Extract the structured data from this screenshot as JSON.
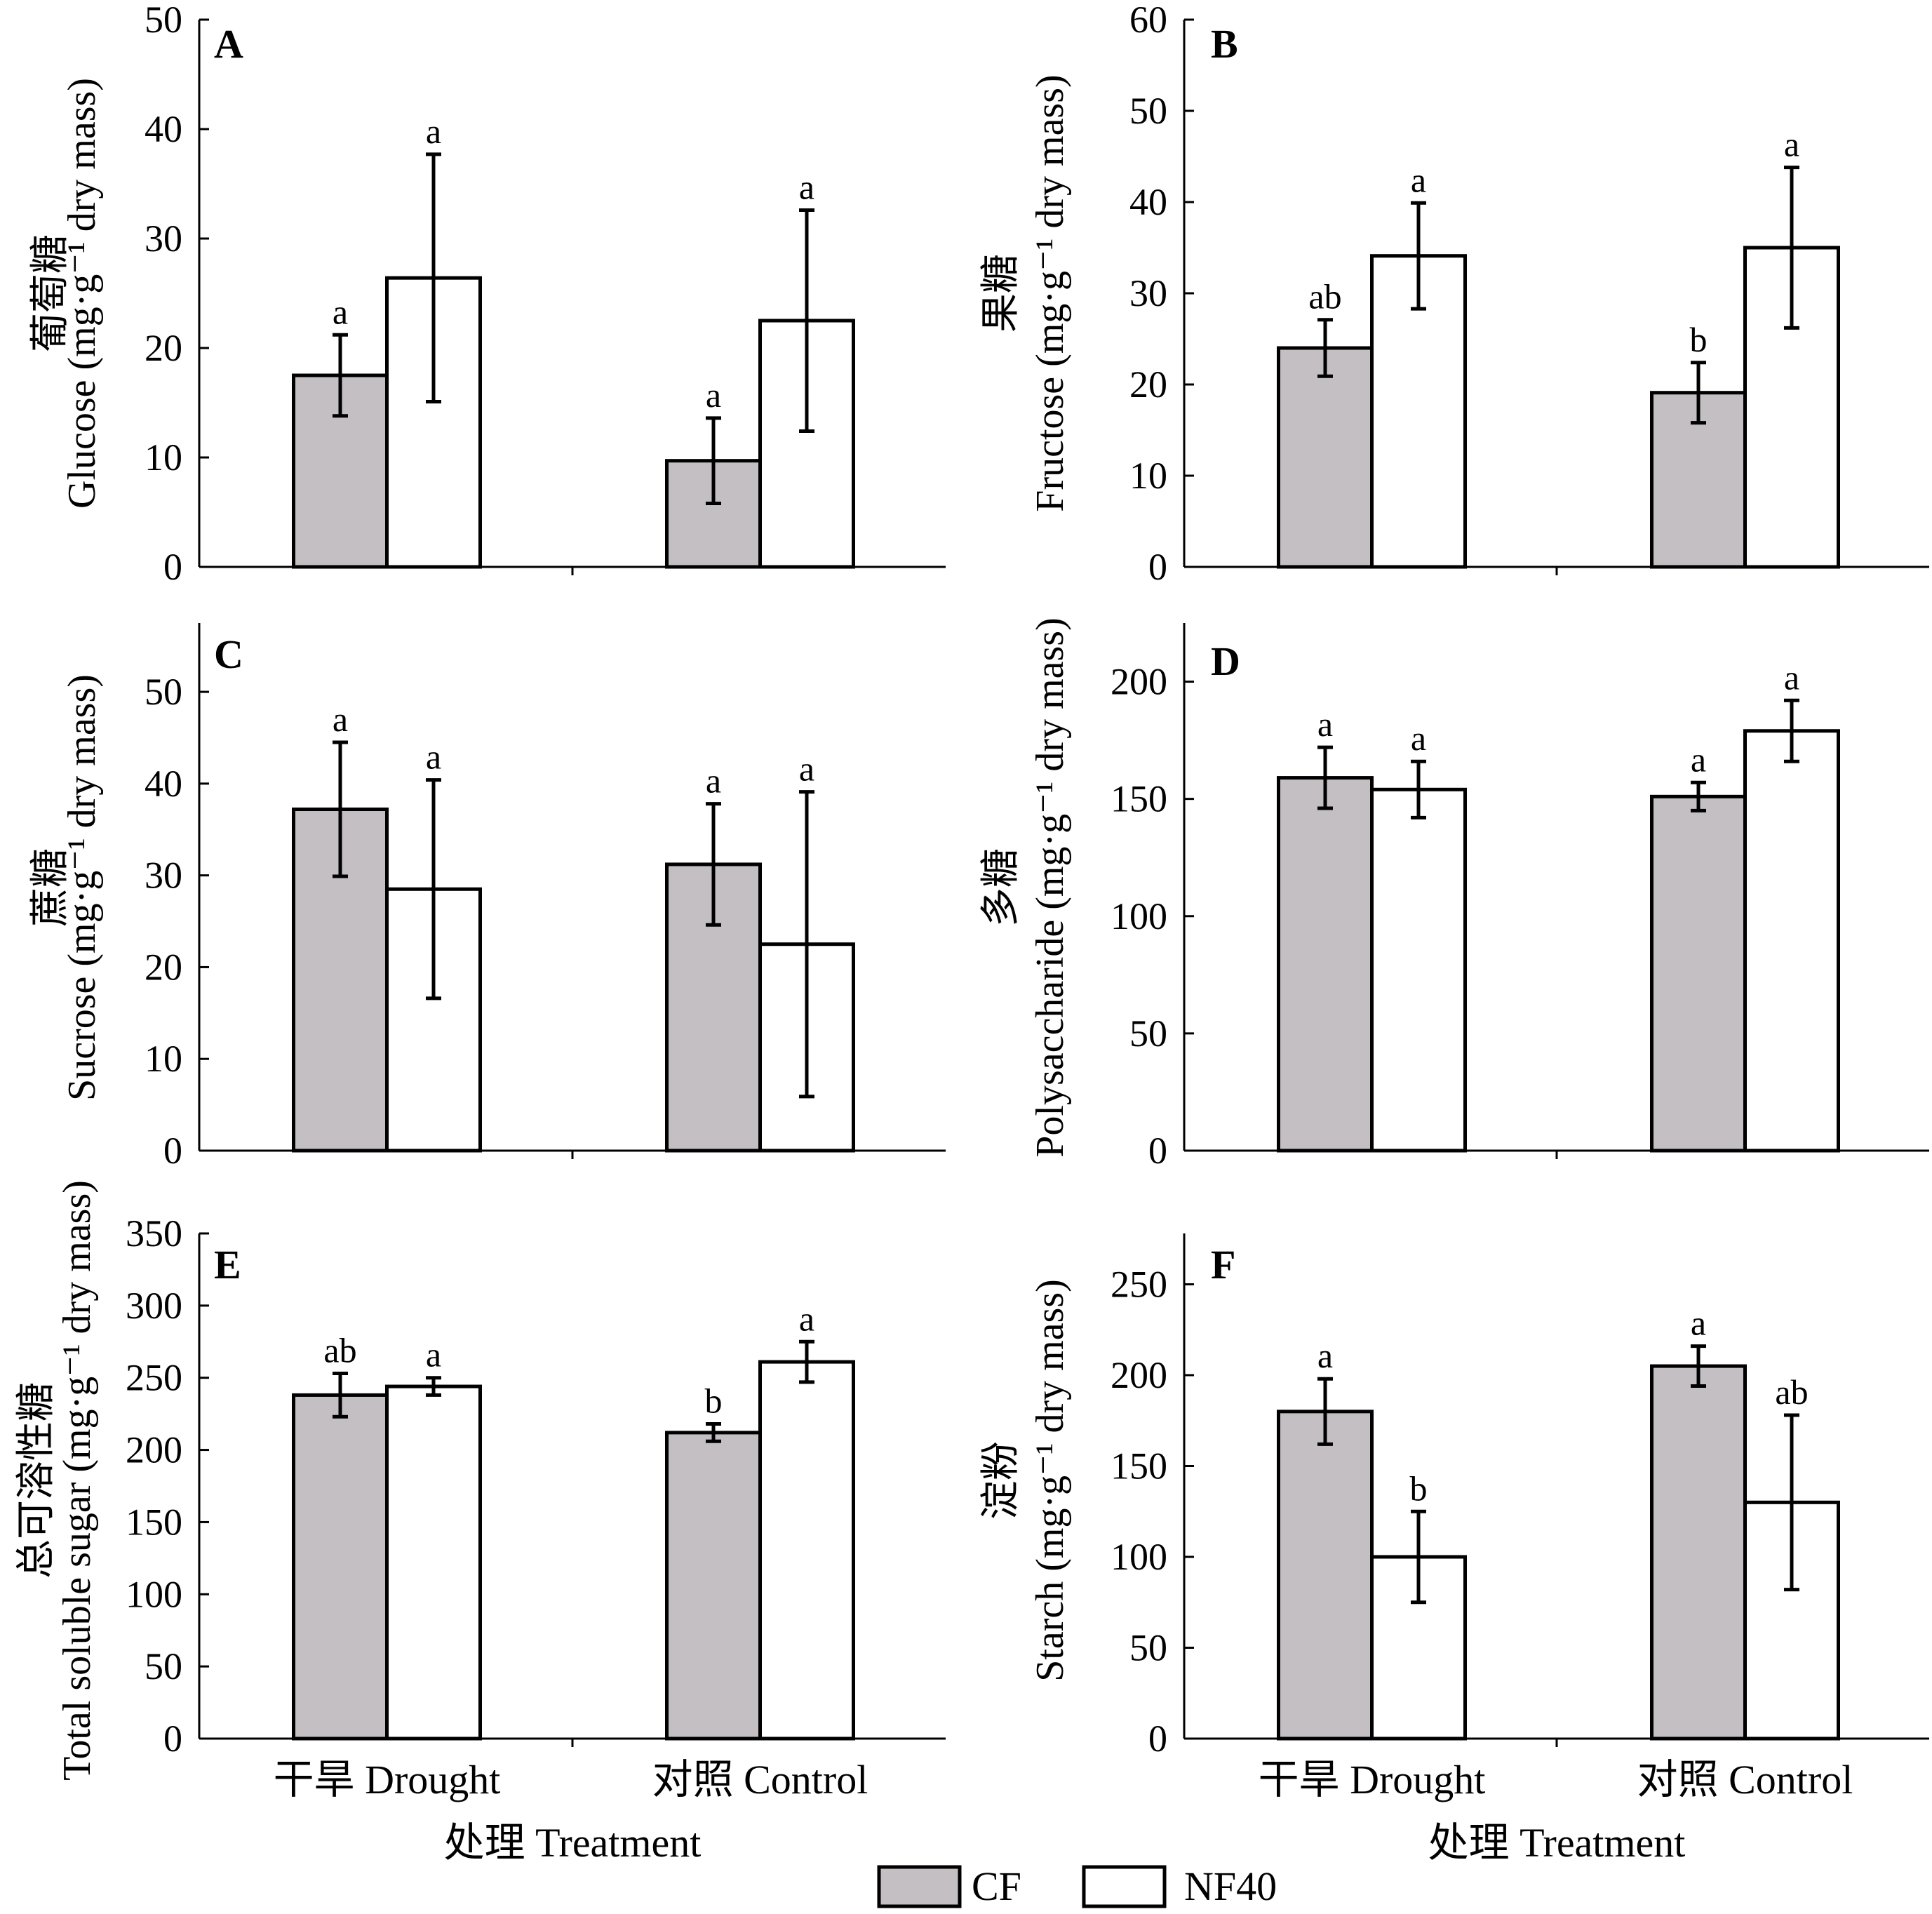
{
  "colors": {
    "CF": "#c4bfc3",
    "NF40": "#ffffff",
    "stroke": "#000000"
  },
  "legend": [
    {
      "name": "CF",
      "color": "#c4bfc3"
    },
    {
      "name": "NF40",
      "color": "#ffffff"
    }
  ],
  "chart_data": [
    {
      "type": "bar",
      "panel": "A",
      "ylabel_cn": "葡萄糖",
      "ylabel_en": "Glucose (mg·g⁻¹ dry mass)",
      "xlabel": "",
      "ylim": [
        0,
        50
      ],
      "yticks": [
        0,
        10,
        20,
        30,
        40,
        50
      ],
      "categories": [
        "干旱 Drought",
        "对照 Control"
      ],
      "series": [
        {
          "name": "CF",
          "values": [
            17.5,
            9.7
          ],
          "errors": [
            3.7,
            3.9
          ],
          "letters": [
            "a",
            "a"
          ]
        },
        {
          "name": "NF40",
          "values": [
            26.4,
            22.5
          ],
          "errors": [
            11.3,
            10.1
          ],
          "letters": [
            "a",
            "a"
          ]
        }
      ]
    },
    {
      "type": "bar",
      "panel": "B",
      "ylabel_cn": "果糖",
      "ylabel_en": "Fructose (mg·g⁻¹ dry mass)",
      "xlabel": "",
      "ylim": [
        0,
        60
      ],
      "yticks": [
        0,
        10,
        20,
        30,
        40,
        50,
        60
      ],
      "categories": [
        "干旱 Drought",
        "对照 Control"
      ],
      "series": [
        {
          "name": "CF",
          "values": [
            24.0,
            19.1
          ],
          "errors": [
            3.1,
            3.3
          ],
          "letters": [
            "ab",
            "b"
          ]
        },
        {
          "name": "NF40",
          "values": [
            34.1,
            35.0
          ],
          "errors": [
            5.8,
            8.8
          ],
          "letters": [
            "a",
            "a"
          ]
        }
      ]
    },
    {
      "type": "bar",
      "panel": "C",
      "ylabel_cn": "蔗糖",
      "ylabel_en": "Sucrose (mg·g⁻¹ dry mass)",
      "xlabel": "",
      "ylim": [
        0,
        57.5
      ],
      "yticks": [
        0,
        10,
        20,
        30,
        40,
        50
      ],
      "categories": [
        "干旱 Drought",
        "对照 Control"
      ],
      "series": [
        {
          "name": "CF",
          "values": [
            37.2,
            31.2
          ],
          "errors": [
            7.3,
            6.6
          ],
          "letters": [
            "a",
            "a"
          ]
        },
        {
          "name": "NF40",
          "values": [
            28.5,
            22.5
          ],
          "errors": [
            11.9,
            16.6
          ],
          "letters": [
            "a",
            "a"
          ]
        }
      ]
    },
    {
      "type": "bar",
      "panel": "D",
      "ylabel_cn": "多糖",
      "ylabel_en": "Polysaccharide (mg·g⁻¹ dry mass)",
      "xlabel": "",
      "ylim": [
        0,
        225
      ],
      "yticks": [
        0,
        50,
        100,
        150,
        200
      ],
      "categories": [
        "干旱 Drought",
        "对照 Control"
      ],
      "series": [
        {
          "name": "CF",
          "values": [
            159,
            151
          ],
          "errors": [
            13,
            6
          ],
          "letters": [
            "a",
            "a"
          ]
        },
        {
          "name": "NF40",
          "values": [
            154,
            179
          ],
          "errors": [
            12,
            13
          ],
          "letters": [
            "a",
            "a"
          ]
        }
      ]
    },
    {
      "type": "bar",
      "panel": "E",
      "ylabel_cn": "总可溶性糖",
      "ylabel_en": "Total soluble sugar (mg·g⁻¹ dry mass)",
      "xlabel": "处理 Treatment",
      "ylim": [
        0,
        350
      ],
      "yticks": [
        0,
        50,
        100,
        150,
        200,
        250,
        300,
        350
      ],
      "categories": [
        "干旱 Drought",
        "对照 Control"
      ],
      "series": [
        {
          "name": "CF",
          "values": [
            238,
            212
          ],
          "errors": [
            15,
            6
          ],
          "letters": [
            "ab",
            "b"
          ]
        },
        {
          "name": "NF40",
          "values": [
            244,
            261
          ],
          "errors": [
            6,
            14
          ],
          "letters": [
            "a",
            "a"
          ]
        }
      ]
    },
    {
      "type": "bar",
      "panel": "F",
      "ylabel_cn": "淀粉",
      "ylabel_en": "Starch (mg·g⁻¹ dry mass)",
      "xlabel": "处理 Treatment",
      "ylim": [
        0,
        278
      ],
      "yticks": [
        0,
        50,
        100,
        150,
        200,
        250
      ],
      "categories": [
        "干旱 Drought",
        "对照 Control"
      ],
      "series": [
        {
          "name": "CF",
          "values": [
            180,
            205
          ],
          "errors": [
            18,
            11
          ],
          "letters": [
            "a",
            "a"
          ]
        },
        {
          "name": "NF40",
          "values": [
            100,
            130
          ],
          "errors": [
            25,
            48
          ],
          "letters": [
            "b",
            "ab"
          ]
        }
      ]
    }
  ]
}
